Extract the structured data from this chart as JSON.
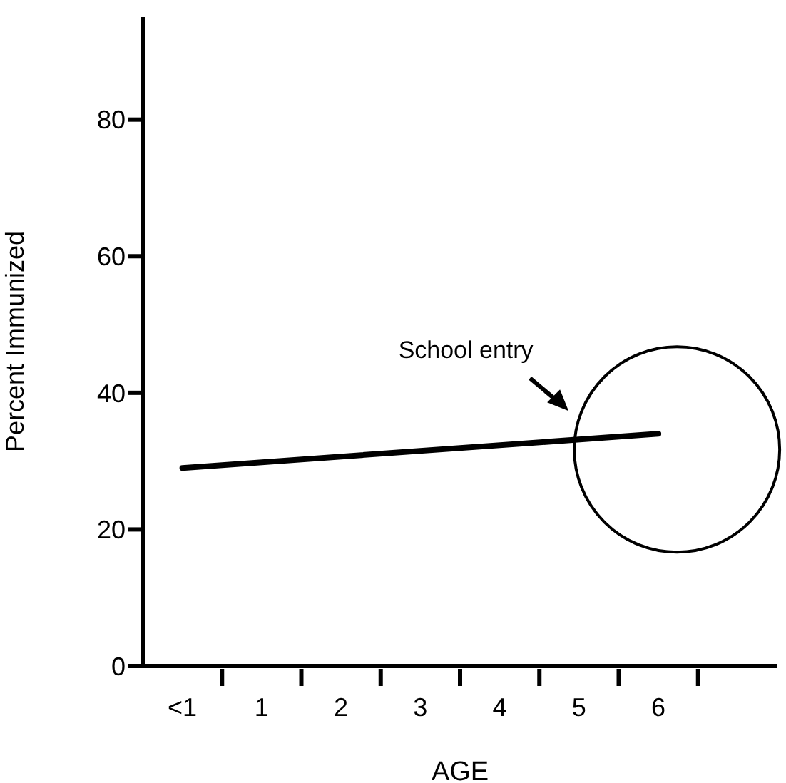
{
  "chart_data": {
    "type": "line",
    "xlabel": "AGE",
    "ylabel": "Percent Immunized",
    "categories": [
      "<1",
      "1",
      "2",
      "3",
      "4",
      "5",
      "6",
      null
    ],
    "series": [
      {
        "color": "#000000",
        "values": [
          29,
          null,
          null,
          null,
          null,
          null,
          34,
          null
        ]
      }
    ],
    "ylim": [
      0,
      95
    ],
    "yticks": [
      0,
      20,
      40,
      60,
      80
    ],
    "grid": false,
    "legend": false,
    "marker": "none",
    "line_style": "solid",
    "annotations": [
      "School entry"
    ]
  }
}
